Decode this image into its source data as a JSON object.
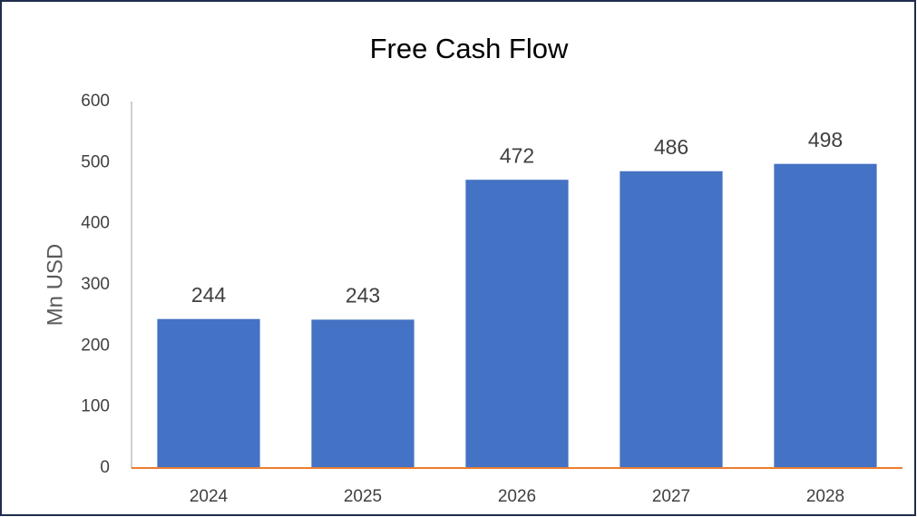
{
  "chart_data": {
    "type": "bar",
    "title": "Free Cash Flow",
    "y_label": "Mn USD",
    "categories": [
      "2024",
      "2025",
      "2026",
      "2027",
      "2028"
    ],
    "values": [
      244,
      243,
      472,
      486,
      498
    ],
    "color": "#4472c4",
    "ylim": [
      0,
      600
    ],
    "yticks": [
      0,
      100,
      200,
      300,
      400,
      500,
      600
    ],
    "grid": false
  }
}
